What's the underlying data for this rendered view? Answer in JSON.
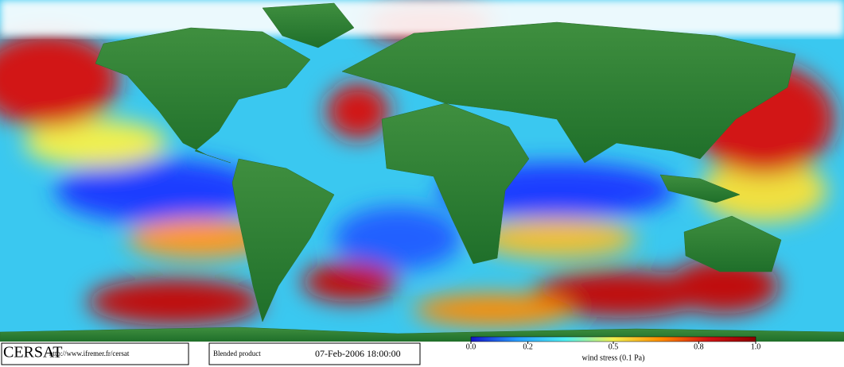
{
  "logo": "CERSAT",
  "url": "http://www.ifremer.fr/cersat",
  "product": "Blended product",
  "timestamp": "07-Feb-2006 18:00:00",
  "colorbar": {
    "label": "wind stress (0.1 Pa)",
    "range": [
      0,
      1
    ],
    "ticks": [
      {
        "value": 0,
        "label": "0.0"
      },
      0.2,
      0.5,
      0.8,
      {
        "value": 1,
        "label": "1.0"
      }
    ],
    "colors": [
      "#1414c8",
      "#28a0ff",
      "#50f0f0",
      "#f0f050",
      "#ff8c00",
      "#d21414",
      "#8c0000"
    ]
  }
}
